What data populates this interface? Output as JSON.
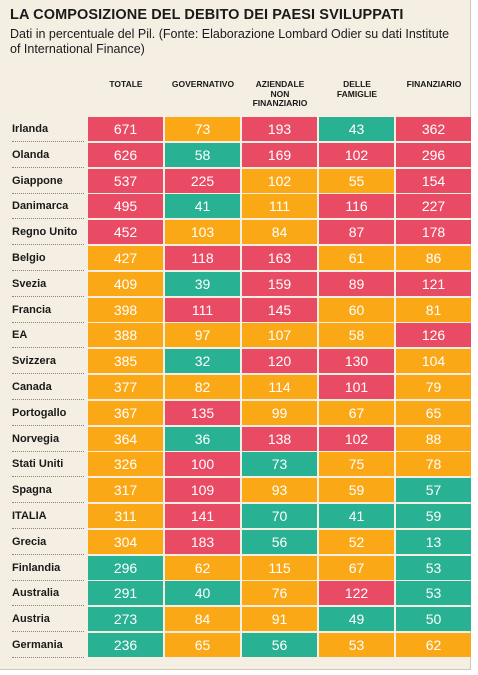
{
  "chart_data": {
    "type": "table",
    "title": "LA COMPOSIZIONE DEL DEBITO DEI PAESI SVILUPPATI",
    "subtitle": "Dati in percentuale del Pil. (Fonte: Elaborazione Lombard Odier su dati Institute of International Finance)",
    "columns": [
      "TOTALE",
      "GOVERNATIVO",
      "AZIENDALE\nNON\nFINANZIARIO",
      "DELLE\nFAMIGLIE",
      "FINANZIARIO"
    ],
    "colors": {
      "high": "#e94b65",
      "medium": "#fba817",
      "low": "#28b192"
    },
    "rows": [
      {
        "country": "Irlanda",
        "values": [
          671,
          73,
          193,
          43,
          362
        ],
        "levels": [
          "high",
          "medium",
          "high",
          "low",
          "high"
        ]
      },
      {
        "country": "Olanda",
        "values": [
          626,
          58,
          169,
          102,
          296
        ],
        "levels": [
          "high",
          "low",
          "high",
          "high",
          "high"
        ]
      },
      {
        "country": "Giappone",
        "values": [
          537,
          225,
          102,
          55,
          154
        ],
        "levels": [
          "high",
          "high",
          "medium",
          "medium",
          "high"
        ]
      },
      {
        "country": "Danimarca",
        "values": [
          495,
          41,
          111,
          116,
          227
        ],
        "levels": [
          "high",
          "low",
          "medium",
          "high",
          "high"
        ]
      },
      {
        "country": "Regno Unito",
        "values": [
          452,
          103,
          84,
          87,
          178
        ],
        "levels": [
          "high",
          "medium",
          "medium",
          "high",
          "high"
        ]
      },
      {
        "country": "Belgio",
        "values": [
          427,
          118,
          163,
          61,
          86
        ],
        "levels": [
          "medium",
          "high",
          "high",
          "medium",
          "medium"
        ]
      },
      {
        "country": "Svezia",
        "values": [
          409,
          39,
          159,
          89,
          121
        ],
        "levels": [
          "medium",
          "low",
          "high",
          "high",
          "high"
        ]
      },
      {
        "country": "Francia",
        "values": [
          398,
          111,
          145,
          60,
          81
        ],
        "levels": [
          "medium",
          "high",
          "high",
          "medium",
          "medium"
        ]
      },
      {
        "country": "EA",
        "values": [
          388,
          97,
          107,
          58,
          126
        ],
        "levels": [
          "medium",
          "medium",
          "medium",
          "medium",
          "high"
        ]
      },
      {
        "country": "Svizzera",
        "values": [
          385,
          32,
          120,
          130,
          104
        ],
        "levels": [
          "medium",
          "low",
          "high",
          "high",
          "medium"
        ]
      },
      {
        "country": "Canada",
        "values": [
          377,
          82,
          114,
          101,
          79
        ],
        "levels": [
          "medium",
          "medium",
          "medium",
          "high",
          "medium"
        ]
      },
      {
        "country": "Portogallo",
        "values": [
          367,
          135,
          99,
          67,
          65
        ],
        "levels": [
          "medium",
          "high",
          "medium",
          "medium",
          "medium"
        ]
      },
      {
        "country": "Norvegia",
        "values": [
          364,
          36,
          138,
          102,
          88
        ],
        "levels": [
          "medium",
          "low",
          "high",
          "high",
          "medium"
        ]
      },
      {
        "country": "Stati Uniti",
        "values": [
          326,
          100,
          73,
          75,
          78
        ],
        "levels": [
          "medium",
          "high",
          "low",
          "medium",
          "medium"
        ]
      },
      {
        "country": "Spagna",
        "values": [
          317,
          109,
          93,
          59,
          57
        ],
        "levels": [
          "medium",
          "high",
          "medium",
          "medium",
          "low"
        ]
      },
      {
        "country": "ITALIA",
        "values": [
          311,
          141,
          70,
          41,
          59
        ],
        "levels": [
          "medium",
          "high",
          "low",
          "low",
          "low"
        ]
      },
      {
        "country": "Grecia",
        "values": [
          304,
          183,
          56,
          52,
          13
        ],
        "levels": [
          "medium",
          "high",
          "low",
          "medium",
          "low"
        ]
      },
      {
        "country": "Finlandia",
        "values": [
          296,
          62,
          115,
          67,
          53
        ],
        "levels": [
          "low",
          "medium",
          "medium",
          "medium",
          "low"
        ]
      },
      {
        "country": "Australia",
        "values": [
          291,
          40,
          76,
          122,
          53
        ],
        "levels": [
          "low",
          "low",
          "medium",
          "high",
          "low"
        ]
      },
      {
        "country": "Austria",
        "values": [
          273,
          84,
          91,
          49,
          50
        ],
        "levels": [
          "low",
          "medium",
          "medium",
          "low",
          "low"
        ]
      },
      {
        "country": "Germania",
        "values": [
          236,
          65,
          56,
          53,
          62
        ],
        "levels": [
          "low",
          "medium",
          "low",
          "medium",
          "medium"
        ]
      }
    ]
  }
}
